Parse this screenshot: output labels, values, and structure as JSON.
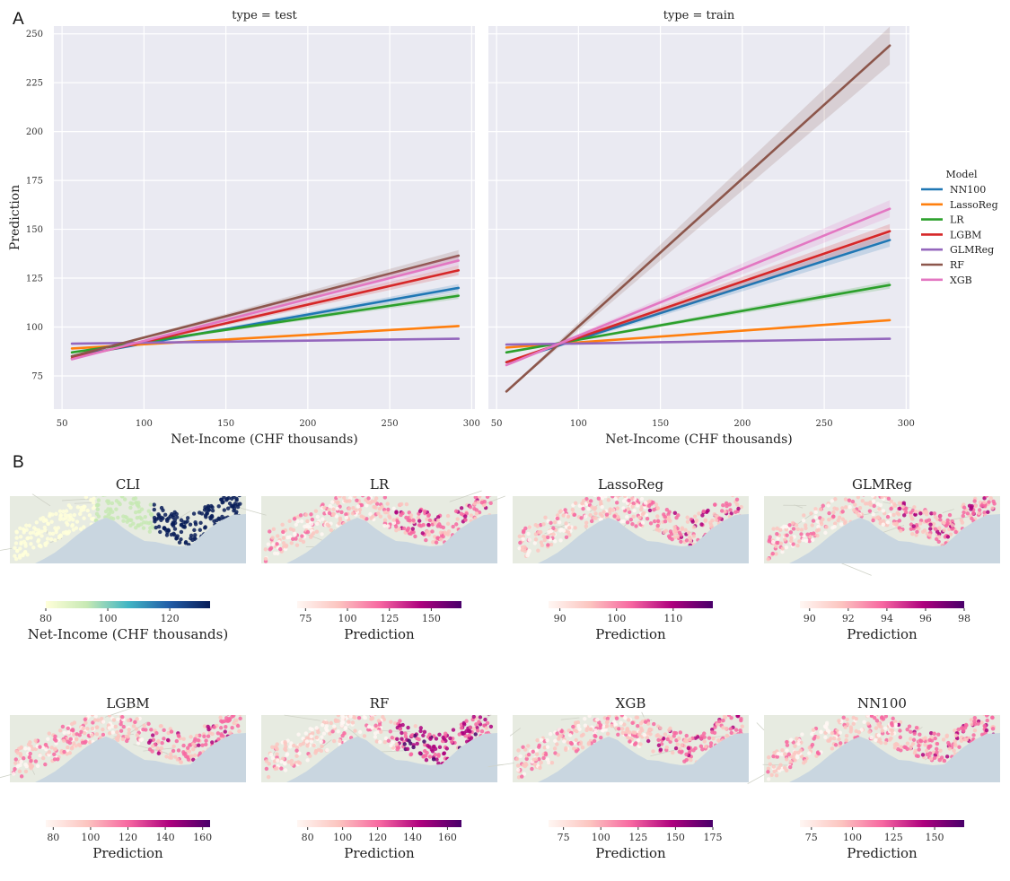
{
  "panel_a_letter": "A",
  "panel_b_letter": "B",
  "chart_data": [
    {
      "type": "line",
      "title": "type = test",
      "xlabel": "Net-Income (CHF thousands)",
      "ylabel": "Prediction",
      "xlim": [
        45,
        302
      ],
      "ylim": [
        58,
        254
      ],
      "xticks": [
        50,
        100,
        150,
        200,
        250,
        300
      ],
      "yticks": [
        75,
        100,
        125,
        150,
        175,
        200,
        225,
        250
      ],
      "grid": true,
      "series": [
        {
          "name": "NN100",
          "color": "#1f77b4",
          "x": [
            56,
            292
          ],
          "y": [
            85,
            120
          ]
        },
        {
          "name": "LassoReg",
          "color": "#ff7f0e",
          "x": [
            56,
            292
          ],
          "y": [
            89,
            100.5
          ]
        },
        {
          "name": "LR",
          "color": "#2ca02c",
          "x": [
            56,
            292
          ],
          "y": [
            87,
            116
          ]
        },
        {
          "name": "LGBM",
          "color": "#d62728",
          "x": [
            56,
            292
          ],
          "y": [
            84,
            129
          ]
        },
        {
          "name": "GLMReg",
          "color": "#9467bd",
          "x": [
            56,
            292
          ],
          "y": [
            91.5,
            94
          ]
        },
        {
          "name": "RF",
          "color": "#8c564b",
          "x": [
            56,
            292
          ],
          "y": [
            85,
            136.5
          ]
        },
        {
          "name": "XGB",
          "color": "#e377c2",
          "x": [
            56,
            292
          ],
          "y": [
            83.5,
            134
          ]
        }
      ]
    },
    {
      "type": "line",
      "title": "type = train",
      "xlabel": "Net-Income (CHF thousands)",
      "ylabel": "",
      "xlim": [
        45,
        302
      ],
      "ylim": [
        58,
        254
      ],
      "xticks": [
        50,
        100,
        150,
        200,
        250,
        300
      ],
      "yticks": [
        75,
        100,
        125,
        150,
        175,
        200,
        225,
        250
      ],
      "grid": true,
      "series": [
        {
          "name": "NN100",
          "color": "#1f77b4",
          "x": [
            56,
            290
          ],
          "y": [
            82,
            144.5
          ]
        },
        {
          "name": "LassoReg",
          "color": "#ff7f0e",
          "x": [
            56,
            290
          ],
          "y": [
            89.5,
            103.5
          ]
        },
        {
          "name": "LR",
          "color": "#2ca02c",
          "x": [
            56,
            290
          ],
          "y": [
            87,
            121.5
          ]
        },
        {
          "name": "LGBM",
          "color": "#d62728",
          "x": [
            56,
            290
          ],
          "y": [
            82,
            149
          ]
        },
        {
          "name": "GLMReg",
          "color": "#9467bd",
          "x": [
            56,
            290
          ],
          "y": [
            91,
            94
          ]
        },
        {
          "name": "RF",
          "color": "#8c564b",
          "x": [
            56,
            290
          ],
          "y": [
            67,
            244
          ]
        },
        {
          "name": "XGB",
          "color": "#e377c2",
          "x": [
            56,
            290
          ],
          "y": [
            80.5,
            160.5
          ]
        }
      ]
    }
  ],
  "legend": {
    "title": "Model",
    "placement": "right",
    "entries": [
      {
        "name": "NN100",
        "color": "#1f77b4"
      },
      {
        "name": "LassoReg",
        "color": "#ff7f0e"
      },
      {
        "name": "LR",
        "color": "#2ca02c"
      },
      {
        "name": "LGBM",
        "color": "#d62728"
      },
      {
        "name": "GLMReg",
        "color": "#9467bd"
      },
      {
        "name": "RF",
        "color": "#8c564b"
      },
      {
        "name": "XGB",
        "color": "#e377c2"
      }
    ]
  },
  "maps": [
    {
      "title": "CLI",
      "colormap": "YlGnBu",
      "colors": [
        "#ffffd9",
        "#c7e9b4",
        "#41b6c4",
        "#225ea8",
        "#081d58"
      ],
      "range": [
        80,
        133
      ],
      "ticks": [
        "80",
        "100",
        "120"
      ],
      "tick_values": [
        80,
        100,
        120
      ],
      "label": "Net-Income (CHF thousands)"
    },
    {
      "title": "LR",
      "colormap": "RdPu",
      "colors": [
        "#fff7f3",
        "#fcc5c0",
        "#f768a1",
        "#ae017e",
        "#49006a"
      ],
      "range": [
        70,
        168
      ],
      "ticks": [
        "75",
        "100",
        "125",
        "150"
      ],
      "tick_values": [
        75,
        100,
        125,
        150
      ],
      "label": "Prediction"
    },
    {
      "title": "LassoReg",
      "colormap": "RdPu",
      "colors": [
        "#fff7f3",
        "#fcc5c0",
        "#f768a1",
        "#ae017e",
        "#49006a"
      ],
      "range": [
        88,
        117
      ],
      "ticks": [
        "90",
        "100",
        "110"
      ],
      "tick_values": [
        90,
        100,
        110
      ],
      "label": "Prediction"
    },
    {
      "title": "GLMReg",
      "colormap": "RdPu",
      "colors": [
        "#fff7f3",
        "#fcc5c0",
        "#f768a1",
        "#ae017e",
        "#49006a"
      ],
      "range": [
        89.5,
        98
      ],
      "ticks": [
        "90",
        "92",
        "94",
        "96",
        "98"
      ],
      "tick_values": [
        90,
        92,
        94,
        96,
        98
      ],
      "label": "Prediction"
    },
    {
      "title": "LGBM",
      "colormap": "RdPu",
      "colors": [
        "#fff7f3",
        "#fcc5c0",
        "#f768a1",
        "#ae017e",
        "#49006a"
      ],
      "range": [
        76,
        164
      ],
      "ticks": [
        "80",
        "100",
        "120",
        "140",
        "160"
      ],
      "tick_values": [
        80,
        100,
        120,
        140,
        160
      ],
      "label": "Prediction"
    },
    {
      "title": "RF",
      "colormap": "RdPu",
      "colors": [
        "#fff7f3",
        "#fcc5c0",
        "#f768a1",
        "#ae017e",
        "#49006a"
      ],
      "range": [
        74,
        168
      ],
      "ticks": [
        "80",
        "100",
        "120",
        "140",
        "160"
      ],
      "tick_values": [
        80,
        100,
        120,
        140,
        160
      ],
      "label": "Prediction"
    },
    {
      "title": "XGB",
      "colormap": "RdPu",
      "colors": [
        "#fff7f3",
        "#fcc5c0",
        "#f768a1",
        "#ae017e",
        "#49006a"
      ],
      "range": [
        65,
        175
      ],
      "ticks": [
        "75",
        "100",
        "125",
        "150",
        "175"
      ],
      "tick_values": [
        75,
        100,
        125,
        150,
        175
      ],
      "label": "Prediction"
    },
    {
      "title": "NN100",
      "colormap": "RdPu",
      "colors": [
        "#fff7f3",
        "#fcc5c0",
        "#f768a1",
        "#ae017e",
        "#49006a"
      ],
      "range": [
        68,
        168
      ],
      "ticks": [
        "75",
        "100",
        "125",
        "150"
      ],
      "tick_values": [
        75,
        100,
        125,
        150
      ],
      "label": "Prediction"
    }
  ]
}
